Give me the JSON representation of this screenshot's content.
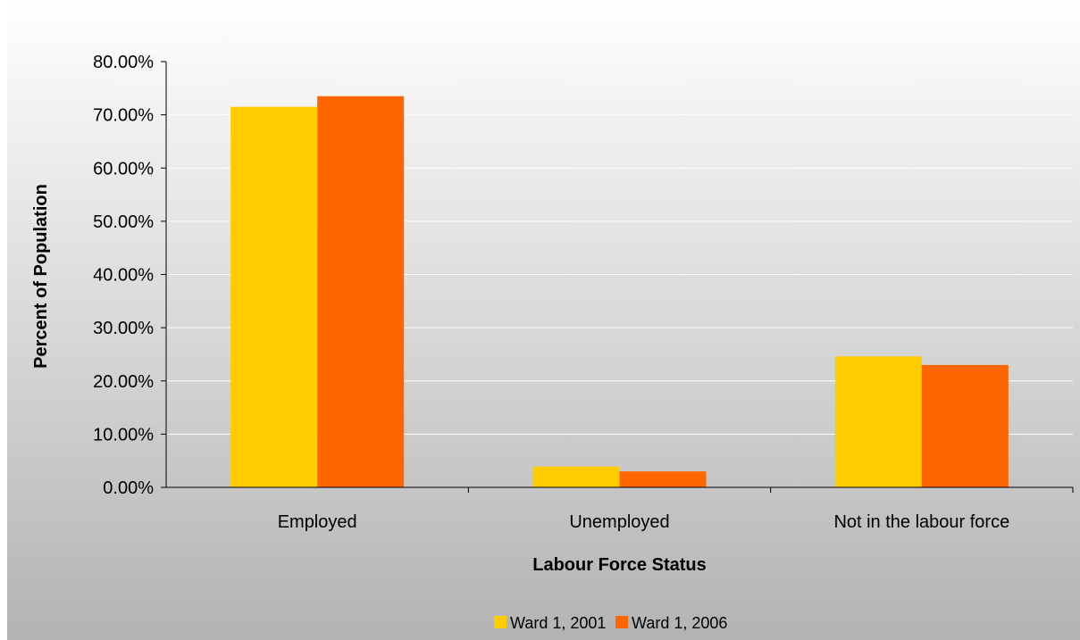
{
  "chart_data": {
    "type": "bar",
    "title": "",
    "xlabel": "Labour Force Status",
    "ylabel": "Percent of Population",
    "categories": [
      "Employed",
      "Unemployed",
      "Not in the labour force"
    ],
    "series": [
      {
        "name": "Ward 1, 2001",
        "values": [
          71.5,
          3.9,
          24.6
        ],
        "color": "#FFCC00"
      },
      {
        "name": "Ward 1, 2006",
        "values": [
          73.5,
          3.0,
          23.0
        ],
        "color": "#FF6600"
      }
    ],
    "ylim": [
      0,
      80
    ],
    "yticks": [
      0,
      10,
      20,
      30,
      40,
      50,
      60,
      70,
      80
    ],
    "ytick_labels": [
      "0.00%",
      "10.00%",
      "20.00%",
      "30.00%",
      "40.00%",
      "50.00%",
      "60.00%",
      "70.00%",
      "80.00%"
    ],
    "grid": true,
    "legend_position": "bottom",
    "background_gradient": [
      "#ffffff",
      "#b3b3b3"
    ]
  }
}
